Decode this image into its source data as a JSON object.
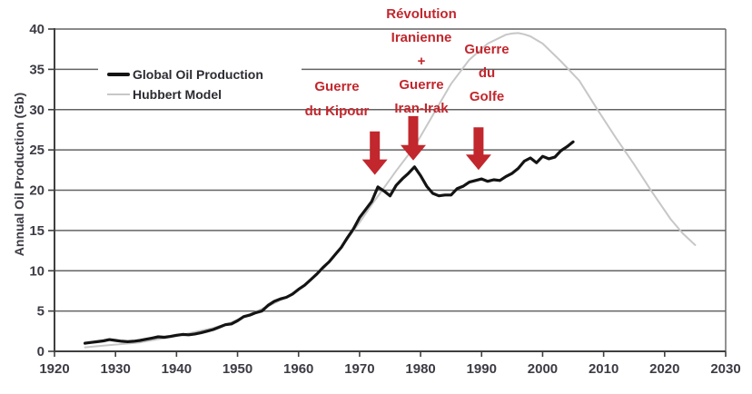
{
  "colors": {
    "background": "#ffffff",
    "grid": "#636363",
    "axis": "#3f3f3f",
    "tick_label": "#3c3c45",
    "legend_text": "#2b2b32",
    "annotation_red": "#c1272d"
  },
  "chart_data": {
    "type": "line",
    "title": "",
    "xlabel": "",
    "ylabel": "Annual Oil Production (Gb)",
    "xlim": [
      1920,
      2030
    ],
    "ylim": [
      0,
      40
    ],
    "xticks": [
      1920,
      1930,
      1940,
      1950,
      1960,
      1970,
      1980,
      1990,
      2000,
      2010,
      2020,
      2030
    ],
    "yticks": [
      0,
      5,
      10,
      15,
      20,
      25,
      30,
      35,
      40
    ],
    "grid": "horizontal",
    "legend_position": "top-left-inside",
    "series": [
      {
        "name": "Global Oil Production",
        "color": "#141414",
        "width": 3.2,
        "points": [
          [
            1925,
            1.0
          ],
          [
            1926,
            1.1
          ],
          [
            1927,
            1.2
          ],
          [
            1928,
            1.3
          ],
          [
            1929,
            1.45
          ],
          [
            1930,
            1.35
          ],
          [
            1931,
            1.25
          ],
          [
            1932,
            1.2
          ],
          [
            1933,
            1.25
          ],
          [
            1934,
            1.35
          ],
          [
            1935,
            1.5
          ],
          [
            1936,
            1.65
          ],
          [
            1937,
            1.8
          ],
          [
            1938,
            1.75
          ],
          [
            1939,
            1.85
          ],
          [
            1940,
            2.0
          ],
          [
            1941,
            2.1
          ],
          [
            1942,
            2.05
          ],
          [
            1943,
            2.15
          ],
          [
            1944,
            2.3
          ],
          [
            1945,
            2.5
          ],
          [
            1946,
            2.7
          ],
          [
            1947,
            3.0
          ],
          [
            1948,
            3.3
          ],
          [
            1949,
            3.4
          ],
          [
            1950,
            3.8
          ],
          [
            1951,
            4.3
          ],
          [
            1952,
            4.5
          ],
          [
            1953,
            4.8
          ],
          [
            1954,
            5.0
          ],
          [
            1955,
            5.7
          ],
          [
            1956,
            6.2
          ],
          [
            1957,
            6.5
          ],
          [
            1958,
            6.7
          ],
          [
            1959,
            7.1
          ],
          [
            1960,
            7.7
          ],
          [
            1961,
            8.2
          ],
          [
            1962,
            8.9
          ],
          [
            1963,
            9.6
          ],
          [
            1964,
            10.4
          ],
          [
            1965,
            11.1
          ],
          [
            1966,
            12.0
          ],
          [
            1967,
            12.9
          ],
          [
            1968,
            14.1
          ],
          [
            1969,
            15.2
          ],
          [
            1970,
            16.6
          ],
          [
            1971,
            17.6
          ],
          [
            1972,
            18.6
          ],
          [
            1973,
            20.4
          ],
          [
            1974,
            19.9
          ],
          [
            1975,
            19.3
          ],
          [
            1976,
            20.6
          ],
          [
            1977,
            21.4
          ],
          [
            1978,
            22.1
          ],
          [
            1979,
            22.9
          ],
          [
            1980,
            21.8
          ],
          [
            1981,
            20.5
          ],
          [
            1982,
            19.6
          ],
          [
            1983,
            19.3
          ],
          [
            1984,
            19.4
          ],
          [
            1985,
            19.4
          ],
          [
            1986,
            20.2
          ],
          [
            1987,
            20.5
          ],
          [
            1988,
            21.0
          ],
          [
            1989,
            21.2
          ],
          [
            1990,
            21.4
          ],
          [
            1991,
            21.1
          ],
          [
            1992,
            21.3
          ],
          [
            1993,
            21.2
          ],
          [
            1994,
            21.7
          ],
          [
            1995,
            22.1
          ],
          [
            1996,
            22.7
          ],
          [
            1997,
            23.6
          ],
          [
            1998,
            24.0
          ],
          [
            1999,
            23.4
          ],
          [
            2000,
            24.2
          ],
          [
            2001,
            23.9
          ],
          [
            2002,
            24.1
          ],
          [
            2003,
            24.9
          ],
          [
            2004,
            25.4
          ],
          [
            2005,
            26.0
          ]
        ]
      },
      {
        "name": "Hubbert Model",
        "color": "#c7c7c7",
        "width": 2,
        "points": [
          [
            1925,
            0.5
          ],
          [
            1928,
            0.7
          ],
          [
            1931,
            0.9
          ],
          [
            1934,
            1.1
          ],
          [
            1937,
            1.5
          ],
          [
            1940,
            1.9
          ],
          [
            1943,
            2.4
          ],
          [
            1946,
            2.9
          ],
          [
            1949,
            3.6
          ],
          [
            1952,
            4.6
          ],
          [
            1955,
            5.6
          ],
          [
            1958,
            6.7
          ],
          [
            1961,
            8.2
          ],
          [
            1964,
            10.2
          ],
          [
            1967,
            12.9
          ],
          [
            1970,
            16.0
          ],
          [
            1972,
            18.2
          ],
          [
            1974,
            20.3
          ],
          [
            1976,
            22.4
          ],
          [
            1979,
            25.4
          ],
          [
            1982,
            29.3
          ],
          [
            1985,
            33.2
          ],
          [
            1988,
            36.2
          ],
          [
            1991,
            38.2
          ],
          [
            1994,
            39.3
          ],
          [
            1995,
            39.45
          ],
          [
            1996,
            39.5
          ],
          [
            1997,
            39.35
          ],
          [
            1998,
            39.1
          ],
          [
            2000,
            38.2
          ],
          [
            2003,
            36.0
          ],
          [
            2006,
            33.6
          ],
          [
            2009,
            30.0
          ],
          [
            2012,
            26.5
          ],
          [
            2015,
            23.2
          ],
          [
            2018,
            19.7
          ],
          [
            2021,
            16.4
          ],
          [
            2023,
            14.6
          ],
          [
            2025,
            13.2
          ]
        ]
      }
    ],
    "annotations": [
      {
        "id": "guerre-du-kipour",
        "lines": [
          "Guerre",
          "du Kipour"
        ],
        "arrow": {
          "year": 1972.5,
          "from_gb": 27.3,
          "to_gb": 21.9
        }
      },
      {
        "id": "revolution-iranienne-guerre-iran-irak",
        "lines": [
          "Révolution",
          "Iranienne",
          "+",
          "Guerre",
          "Iran-Irak"
        ],
        "arrow": {
          "year": 1978.8,
          "from_gb": 29.2,
          "to_gb": 23.7
        }
      },
      {
        "id": "guerre-du-golfe",
        "lines": [
          "Guerre",
          "du",
          "Golfe"
        ],
        "arrow": {
          "year": 1989.5,
          "from_gb": 27.8,
          "to_gb": 22.5
        }
      }
    ]
  }
}
